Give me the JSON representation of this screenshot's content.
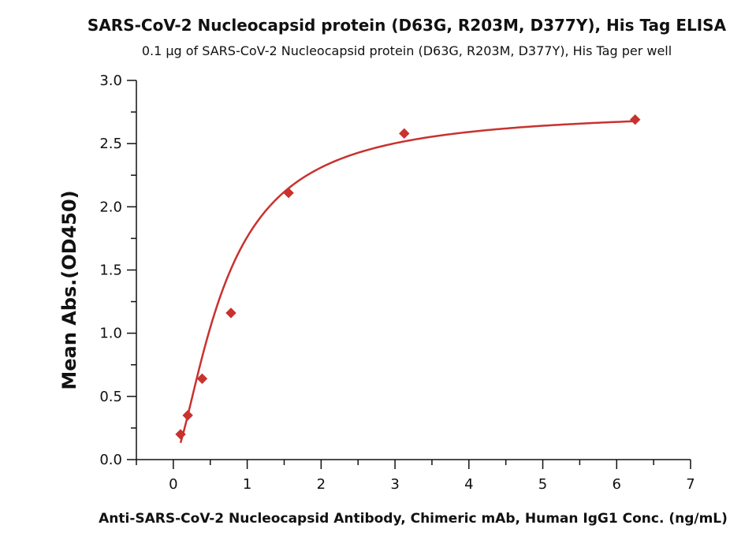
{
  "chart_data": {
    "type": "scatter",
    "title": "SARS-CoV-2 Nucleocapsid protein (D63G, R203M, D377Y), His Tag ELISA",
    "subtitle": "0.1 μg of SARS-CoV-2 Nucleocapsid protein (D63G, R203M, D377Y), His Tag per well",
    "xlabel": "Anti-SARS-CoV-2 Nucleocapsid Antibody, Chimeric mAb, Human IgG1 Conc. (ng/mL)",
    "ylabel": "Mean Abs.(OD450)",
    "xlim": [
      -0.5,
      7
    ],
    "ylim": [
      0,
      3
    ],
    "x_ticks": [
      0,
      1,
      2,
      3,
      4,
      5,
      6,
      7
    ],
    "x_tick_labels": [
      "0",
      "1",
      "2",
      "3",
      "4",
      "5",
      "6",
      "7"
    ],
    "y_ticks": [
      0,
      0.5,
      1,
      1.5,
      2,
      2.5,
      3
    ],
    "y_tick_labels": [
      "0.0",
      "0.5",
      "1.0",
      "1.5",
      "2.0",
      "2.5",
      "3.0"
    ],
    "grid": false,
    "series": [
      {
        "x": [
          0.098,
          0.195,
          0.39,
          0.78,
          1.56,
          3.125,
          6.25
        ],
        "y": [
          0.2,
          0.35,
          0.64,
          1.16,
          2.11,
          2.58,
          2.69
        ],
        "marker": "diamond",
        "color": "#c8322f",
        "fit": "logistic",
        "fit_color": "#c8322f"
      }
    ]
  }
}
